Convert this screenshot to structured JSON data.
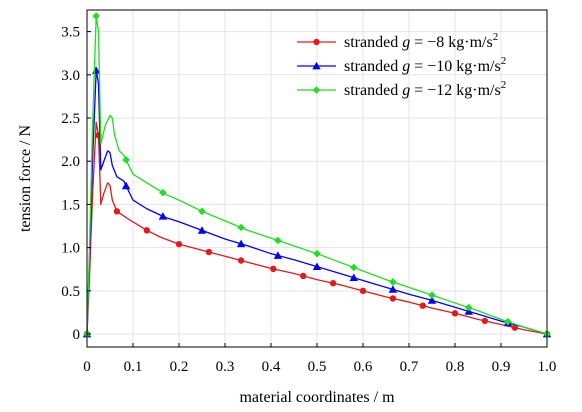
{
  "chart_data": {
    "type": "line",
    "title": "",
    "xlabel": "material coordinates / m",
    "ylabel": "tension force / N",
    "xlim": [
      0,
      1.0
    ],
    "ylim": [
      -0.15,
      3.75
    ],
    "x_ticks": [
      0,
      0.1,
      0.2,
      0.3,
      0.4,
      0.5,
      0.6,
      0.7,
      0.8,
      0.9,
      1.0
    ],
    "x_tick_labels": [
      "0",
      "0.1",
      "0.2",
      "0.3",
      "0.4",
      "0.5",
      "0.6",
      "0.7",
      "0.8",
      "0.9",
      "1.0"
    ],
    "y_ticks": [
      0,
      0.5,
      1.0,
      1.5,
      2.0,
      2.5,
      3.0,
      3.5
    ],
    "y_tick_labels": [
      "0",
      "0.5",
      "1.0",
      "1.5",
      "2.0",
      "2.5",
      "3.0",
      "3.5"
    ],
    "grid": true,
    "legend_position": "top-right",
    "series": [
      {
        "name": "stranded g = −8 kg·m/s²",
        "legend": {
          "prefix": "stranded ",
          "var": "g",
          "rest": " = −8 kg·m/s",
          "sup": "2"
        },
        "color": "#e31a1c",
        "marker": "circle",
        "points": [
          [
            0,
            0
          ],
          [
            0.005,
            0.6
          ],
          [
            0.012,
            1.6
          ],
          [
            0.02,
            2.45
          ],
          [
            0.025,
            2.3
          ],
          [
            0.03,
            1.5
          ],
          [
            0.036,
            1.62
          ],
          [
            0.045,
            1.75
          ],
          [
            0.05,
            1.72
          ],
          [
            0.055,
            1.55
          ],
          [
            0.065,
            1.42
          ],
          [
            0.09,
            1.33
          ],
          [
            0.13,
            1.2
          ],
          [
            0.16,
            1.12
          ],
          [
            0.2,
            1.04
          ],
          [
            0.25,
            0.97
          ],
          [
            0.3,
            0.9
          ],
          [
            0.35,
            0.83
          ],
          [
            0.4,
            0.76
          ],
          [
            0.45,
            0.7
          ],
          [
            0.5,
            0.63
          ],
          [
            0.55,
            0.57
          ],
          [
            0.6,
            0.5
          ],
          [
            0.65,
            0.43
          ],
          [
            0.7,
            0.37
          ],
          [
            0.75,
            0.3
          ],
          [
            0.8,
            0.24
          ],
          [
            0.85,
            0.17
          ],
          [
            0.9,
            0.11
          ],
          [
            0.95,
            0.05
          ],
          [
            1.0,
            0
          ]
        ],
        "marker_x": [
          0,
          0.025,
          0.065,
          0.13,
          0.2,
          0.265,
          0.335,
          0.405,
          0.47,
          0.535,
          0.6,
          0.665,
          0.73,
          0.8,
          0.865,
          0.93,
          1.0
        ]
      },
      {
        "name": "stranded g = −10 kg·m/s²",
        "legend": {
          "prefix": "stranded ",
          "var": "g",
          "rest": " = −10 kg·m/s",
          "sup": "2"
        },
        "color": "#0000ff",
        "marker": "triangle",
        "points": [
          [
            0,
            0
          ],
          [
            0.005,
            0.8
          ],
          [
            0.012,
            2.0
          ],
          [
            0.02,
            3.05
          ],
          [
            0.025,
            2.9
          ],
          [
            0.03,
            1.9
          ],
          [
            0.038,
            2.02
          ],
          [
            0.045,
            2.12
          ],
          [
            0.05,
            2.1
          ],
          [
            0.055,
            1.95
          ],
          [
            0.065,
            1.82
          ],
          [
            0.08,
            1.77
          ],
          [
            0.1,
            1.55
          ],
          [
            0.13,
            1.45
          ],
          [
            0.17,
            1.35
          ],
          [
            0.2,
            1.3
          ],
          [
            0.25,
            1.2
          ],
          [
            0.3,
            1.1
          ],
          [
            0.35,
            1.02
          ],
          [
            0.4,
            0.93
          ],
          [
            0.45,
            0.86
          ],
          [
            0.5,
            0.78
          ],
          [
            0.55,
            0.7
          ],
          [
            0.6,
            0.62
          ],
          [
            0.65,
            0.54
          ],
          [
            0.7,
            0.46
          ],
          [
            0.75,
            0.39
          ],
          [
            0.8,
            0.31
          ],
          [
            0.85,
            0.23
          ],
          [
            0.9,
            0.15
          ],
          [
            0.95,
            0.08
          ],
          [
            1.0,
            0
          ]
        ],
        "marker_x": [
          0,
          0.02,
          0.085,
          0.165,
          0.25,
          0.335,
          0.415,
          0.5,
          0.58,
          0.665,
          0.75,
          0.83,
          0.915,
          1.0
        ]
      },
      {
        "name": "stranded g = −12 kg·m/s²",
        "legend": {
          "prefix": "stranded ",
          "var": "g",
          "rest": " = −12 kg·m/s",
          "sup": "2"
        },
        "color": "#22dd22",
        "marker": "diamond",
        "points": [
          [
            0,
            0
          ],
          [
            0.005,
            0.9
          ],
          [
            0.012,
            2.4
          ],
          [
            0.02,
            3.68
          ],
          [
            0.025,
            3.5
          ],
          [
            0.03,
            2.2
          ],
          [
            0.04,
            2.42
          ],
          [
            0.05,
            2.53
          ],
          [
            0.055,
            2.5
          ],
          [
            0.06,
            2.3
          ],
          [
            0.07,
            2.12
          ],
          [
            0.08,
            2.07
          ],
          [
            0.1,
            1.85
          ],
          [
            0.13,
            1.75
          ],
          [
            0.17,
            1.62
          ],
          [
            0.2,
            1.55
          ],
          [
            0.25,
            1.42
          ],
          [
            0.3,
            1.31
          ],
          [
            0.35,
            1.2
          ],
          [
            0.4,
            1.11
          ],
          [
            0.45,
            1.02
          ],
          [
            0.5,
            0.93
          ],
          [
            0.55,
            0.83
          ],
          [
            0.6,
            0.73
          ],
          [
            0.65,
            0.63
          ],
          [
            0.7,
            0.54
          ],
          [
            0.75,
            0.45
          ],
          [
            0.8,
            0.36
          ],
          [
            0.85,
            0.27
          ],
          [
            0.9,
            0.17
          ],
          [
            0.95,
            0.08
          ],
          [
            1.0,
            0
          ]
        ],
        "marker_x": [
          0,
          0.02,
          0.085,
          0.165,
          0.25,
          0.335,
          0.415,
          0.5,
          0.58,
          0.665,
          0.75,
          0.83,
          0.915,
          1.0
        ]
      }
    ]
  }
}
